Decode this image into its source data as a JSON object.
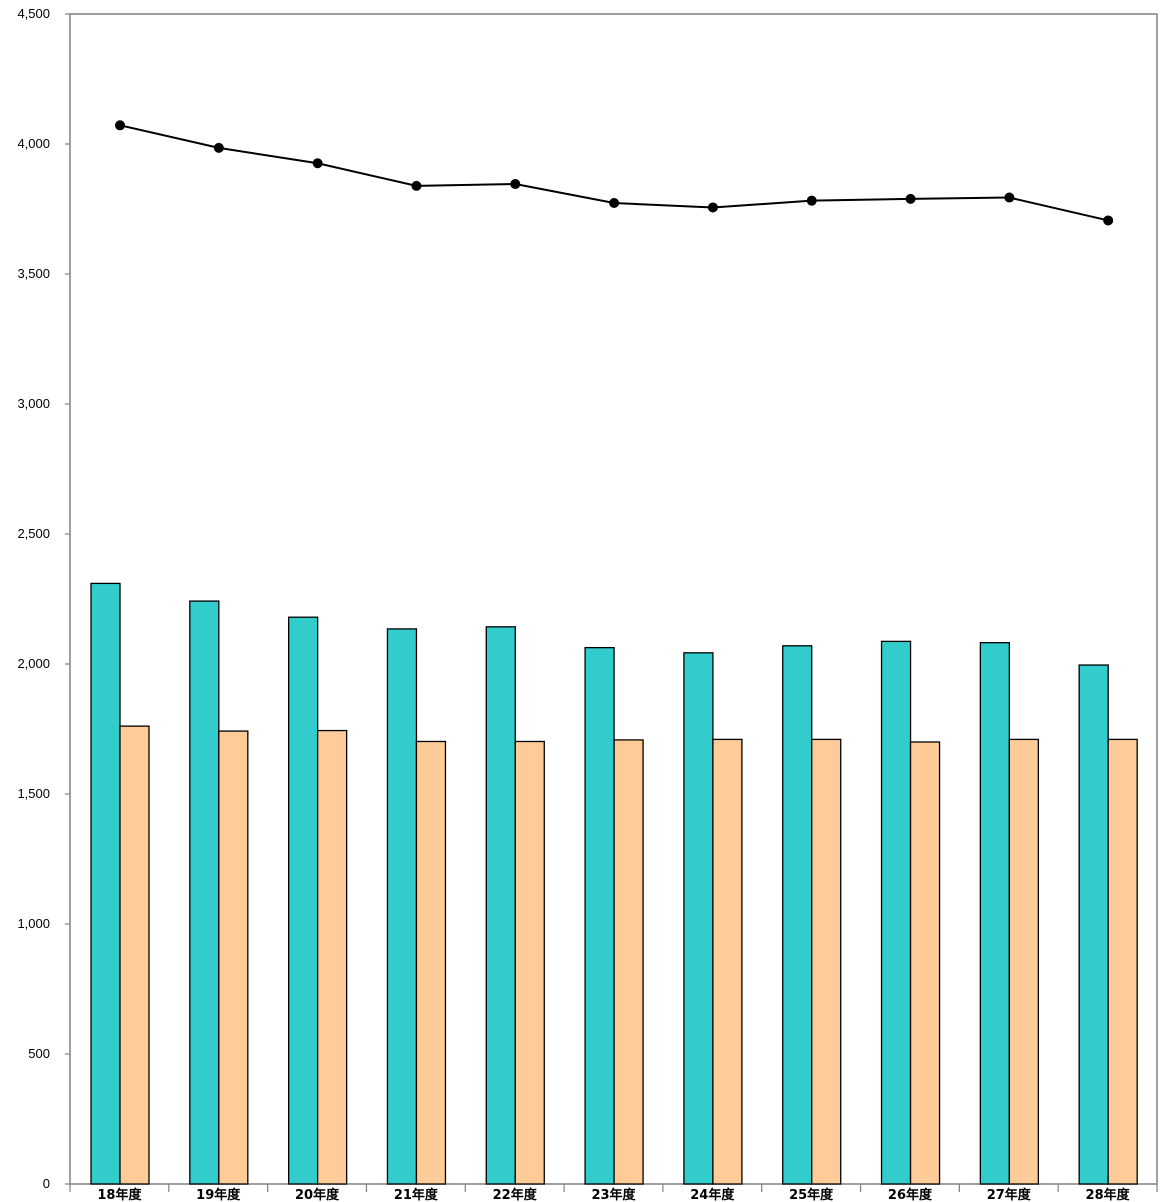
{
  "chart_data": {
    "type": "bar",
    "categories": [
      "18年度",
      "19年度",
      "20年度",
      "21年度",
      "22年度",
      "23年度",
      "24年度",
      "25年度",
      "26年度",
      "27年度",
      "28年度"
    ],
    "ylim": [
      0,
      4500
    ],
    "yticks": [
      0,
      500,
      1000,
      1500,
      2000,
      2500,
      3000,
      3500,
      4000,
      4500
    ],
    "ytick_labels": [
      "0",
      "500",
      "1,000",
      "1,500",
      "2,000",
      "2,500",
      "3,000",
      "3,500",
      "4,000",
      "4,500"
    ],
    "grid": false,
    "series": [
      {
        "kind": "bar",
        "color": "#33CCCC",
        "values": [
          2310,
          2242,
          2180,
          2135,
          2143,
          2063,
          2043,
          2070,
          2087,
          2082,
          1996
        ]
      },
      {
        "kind": "bar",
        "color": "#FFCC99",
        "values": [
          1761,
          1742,
          1744,
          1702,
          1702,
          1708,
          1710,
          1710,
          1700,
          1710,
          1710
        ]
      },
      {
        "kind": "line",
        "color": "#000000",
        "values": [
          4072,
          3985,
          3926,
          3839,
          3846,
          3773,
          3756,
          3782,
          3789,
          3794,
          3706
        ]
      }
    ]
  }
}
